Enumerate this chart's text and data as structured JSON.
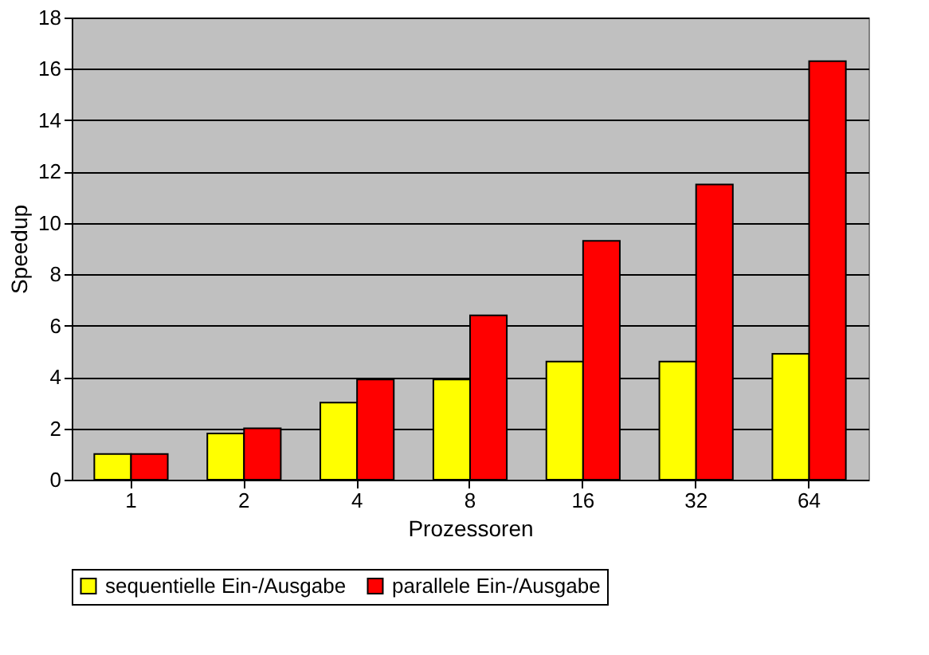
{
  "chart_data": {
    "type": "bar",
    "xlabel": "Prozessoren",
    "ylabel": "Speedup",
    "categories": [
      "1",
      "2",
      "4",
      "8",
      "16",
      "32",
      "64"
    ],
    "series": [
      {
        "name": "sequentielle Ein-/Ausgabe",
        "color": "#ffff00",
        "values": [
          1.0,
          1.8,
          3.0,
          3.9,
          4.6,
          4.6,
          4.9
        ]
      },
      {
        "name": "parallele Ein-/Ausgabe",
        "color": "#ff0000",
        "values": [
          1.0,
          2.0,
          3.9,
          6.4,
          9.3,
          11.5,
          16.3
        ]
      }
    ],
    "ylim": [
      0,
      18
    ],
    "yticks": [
      0,
      2,
      4,
      6,
      8,
      10,
      12,
      14,
      16,
      18
    ],
    "grid": "y",
    "legend": "bottom"
  }
}
